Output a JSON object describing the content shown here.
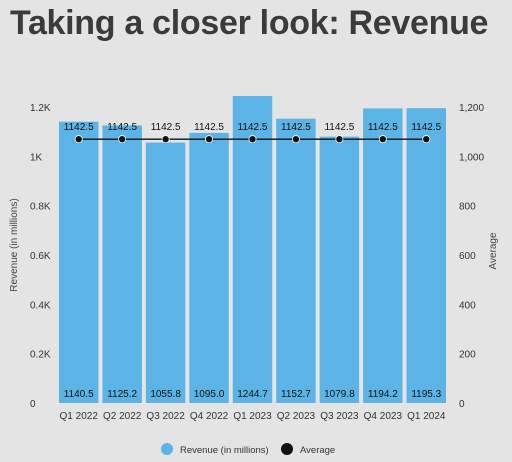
{
  "title": "Taking a closer look: Revenue",
  "chart_data": {
    "type": "bar",
    "categories": [
      "Q1 2022",
      "Q2 2022",
      "Q3 2022",
      "Q4 2022",
      "Q1 2023",
      "Q2 2023",
      "Q3 2023",
      "Q4 2023",
      "Q1 2024"
    ],
    "series": [
      {
        "name": "Revenue (in millions)",
        "type": "bar",
        "axis": "left",
        "color": "#5bb4e5",
        "values": [
          1140.5,
          1125.2,
          1055.8,
          1095.0,
          1244.7,
          1152.7,
          1079.8,
          1194.2,
          1195.3
        ],
        "labels": [
          "1140.5",
          "1125.2",
          "1055.8",
          "1095.0",
          "1244.7",
          "1152.7",
          "1079.8",
          "1194.2",
          "1195.3"
        ]
      },
      {
        "name": "Average",
        "type": "line",
        "axis": "right",
        "color": "#111111",
        "values": [
          1142.5,
          1142.5,
          1142.5,
          1142.5,
          1142.5,
          1142.5,
          1142.5,
          1142.5,
          1142.5
        ],
        "labels": [
          "1142.5",
          "1142.5",
          "1142.5",
          "1142.5",
          "1142.5",
          "1142.5",
          "1142.5",
          "1142.5",
          "1142.5"
        ]
      }
    ],
    "ylabel": "Revenue (in millions)",
    "ylabel_right": "Average",
    "ylim": [
      0,
      1200
    ],
    "ylim_right": [
      0,
      1200
    ],
    "yticks": [
      0,
      200,
      400,
      600,
      800,
      1000,
      1200
    ],
    "ytick_labels": [
      "0",
      "0.2K",
      "0.4K",
      "0.6K",
      "0.8K",
      "1K",
      "1.2K"
    ],
    "ytick_labels_right": [
      "0",
      "200",
      "400",
      "600",
      "800",
      "1,000",
      "1,200"
    ],
    "grid": false,
    "legend_position": "bottom"
  }
}
